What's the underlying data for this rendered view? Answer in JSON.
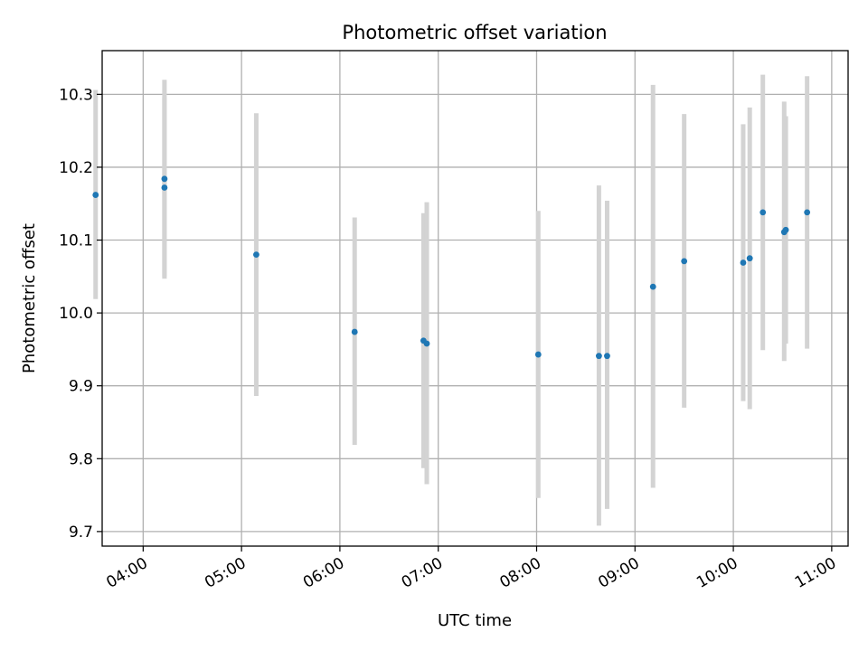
{
  "chart_data": {
    "type": "scatter",
    "title": "Photometric offset variation",
    "xlabel": "UTC time",
    "ylabel": "Photometric offset",
    "xlim": [
      "03:35",
      "11:10"
    ],
    "ylim": [
      9.68,
      10.36
    ],
    "xticks": [
      "04:00",
      "05:00",
      "06:00",
      "07:00",
      "08:00",
      "09:00",
      "10:00",
      "11:00"
    ],
    "yticks": [
      "9.7",
      "9.8",
      "9.9",
      "10.0",
      "10.1",
      "10.2",
      "10.3"
    ],
    "grid": true,
    "legend": "none",
    "colors": {
      "points": "#1f77b4",
      "error_bars": "#d3d3d3",
      "grid": "#b0b0b0"
    },
    "points": [
      {
        "x": "03:31",
        "y": 10.162,
        "y_low": 10.019,
        "y_high": 10.306
      },
      {
        "x": "04:13",
        "y": 10.172,
        "y_low": 10.05,
        "y_high": 10.296
      },
      {
        "x": "04:13",
        "y": 10.184,
        "y_low": 10.047,
        "y_high": 10.32
      },
      {
        "x": "05:09",
        "y": 10.08,
        "y_low": 9.886,
        "y_high": 10.274
      },
      {
        "x": "06:09",
        "y": 9.974,
        "y_low": 9.819,
        "y_high": 10.131
      },
      {
        "x": "06:51",
        "y": 9.962,
        "y_low": 9.787,
        "y_high": 10.137
      },
      {
        "x": "06:53",
        "y": 9.958,
        "y_low": 9.765,
        "y_high": 10.152
      },
      {
        "x": "08:01",
        "y": 9.943,
        "y_low": 9.746,
        "y_high": 10.14
      },
      {
        "x": "08:38",
        "y": 9.941,
        "y_low": 9.708,
        "y_high": 10.175
      },
      {
        "x": "08:43",
        "y": 9.941,
        "y_low": 9.731,
        "y_high": 10.154
      },
      {
        "x": "09:11",
        "y": 10.036,
        "y_low": 9.76,
        "y_high": 10.313
      },
      {
        "x": "09:30",
        "y": 10.071,
        "y_low": 9.87,
        "y_high": 10.273
      },
      {
        "x": "10:06",
        "y": 10.069,
        "y_low": 9.879,
        "y_high": 10.259
      },
      {
        "x": "10:10",
        "y": 10.075,
        "y_low": 9.868,
        "y_high": 10.282
      },
      {
        "x": "10:18",
        "y": 10.138,
        "y_low": 9.949,
        "y_high": 10.327
      },
      {
        "x": "10:31",
        "y": 10.111,
        "y_low": 9.934,
        "y_high": 10.29
      },
      {
        "x": "10:32",
        "y": 10.114,
        "y_low": 9.958,
        "y_high": 10.27
      },
      {
        "x": "10:45",
        "y": 10.138,
        "y_low": 9.951,
        "y_high": 10.325
      }
    ]
  }
}
